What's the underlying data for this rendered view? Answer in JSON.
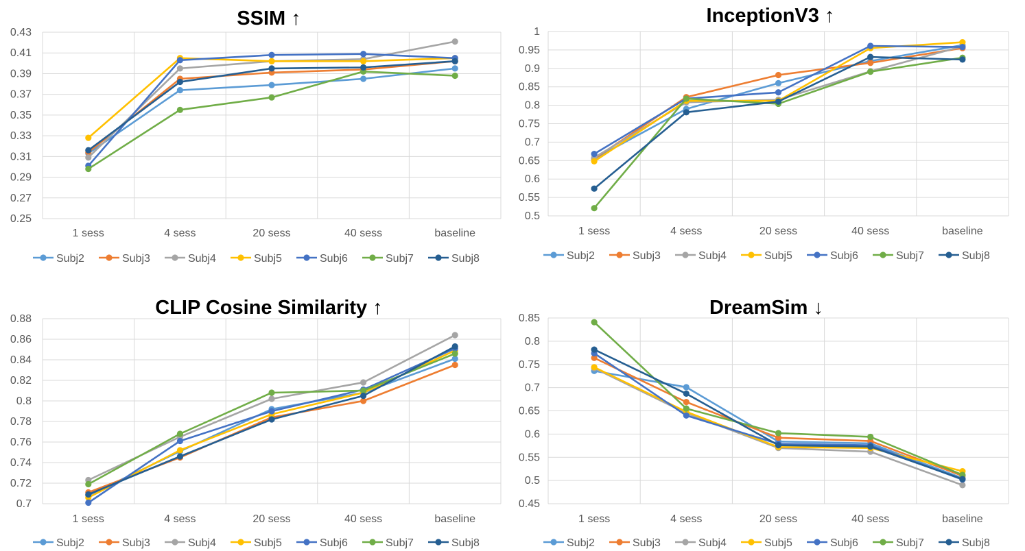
{
  "colors": {
    "Subj2": "#5B9BD5",
    "Subj3": "#ED7D31",
    "Subj4": "#A5A5A5",
    "Subj5": "#FFC000",
    "Subj6": "#4472C4",
    "Subj7": "#70AD47",
    "Subj8": "#255E91"
  },
  "chart_data": [
    {
      "type": "line",
      "title": "SSIM",
      "arrow": "↑",
      "categories": [
        "1 sess",
        "4 sess",
        "20 sess",
        "40 sess",
        "baseline"
      ],
      "ylim": [
        0.25,
        0.43
      ],
      "yticks": [
        0.25,
        0.27,
        0.29,
        0.31,
        0.33,
        0.35,
        0.37,
        0.39,
        0.41,
        0.43
      ],
      "ytick_labels": [
        "0.25",
        "0.27",
        "0.29",
        "0.31",
        "0.33",
        "0.35",
        "0.37",
        "0.39",
        "0.41",
        "0.43"
      ],
      "legend_position": "bottom",
      "series": [
        {
          "name": "Subj2",
          "values": [
            0.313,
            0.374,
            0.379,
            0.385,
            0.395
          ]
        },
        {
          "name": "Subj3",
          "values": [
            0.314,
            0.385,
            0.391,
            0.394,
            0.402
          ]
        },
        {
          "name": "Subj4",
          "values": [
            0.309,
            0.395,
            0.402,
            0.404,
            0.421
          ]
        },
        {
          "name": "Subj5",
          "values": [
            0.328,
            0.405,
            0.402,
            0.402,
            0.405
          ]
        },
        {
          "name": "Subj6",
          "values": [
            0.301,
            0.403,
            0.408,
            0.409,
            0.405
          ]
        },
        {
          "name": "Subj7",
          "values": [
            0.298,
            0.355,
            0.367,
            0.392,
            0.388
          ]
        },
        {
          "name": "Subj8",
          "values": [
            0.316,
            0.382,
            0.395,
            0.396,
            0.402
          ]
        }
      ]
    },
    {
      "type": "line",
      "title": "InceptionV3",
      "arrow": "↑",
      "categories": [
        "1 sess",
        "4 sess",
        "20 sess",
        "40 sess",
        "baseline"
      ],
      "ylim": [
        0.5,
        1.0
      ],
      "yticks": [
        0.5,
        0.55,
        0.6,
        0.65,
        0.7,
        0.75,
        0.8,
        0.85,
        0.9,
        0.95,
        1.0
      ],
      "ytick_labels": [
        "0.5",
        "0.55",
        "0.6",
        "0.65",
        "0.7",
        "0.75",
        "0.8",
        "0.85",
        "0.9",
        "0.95",
        "1"
      ],
      "legend_position": "bottom",
      "series": [
        {
          "name": "Subj2",
          "values": [
            0.655,
            0.79,
            0.86,
            0.92,
            0.963
          ]
        },
        {
          "name": "Subj3",
          "values": [
            0.655,
            0.822,
            0.882,
            0.915,
            0.955
          ]
        },
        {
          "name": "Subj4",
          "values": [
            0.658,
            0.808,
            0.815,
            0.892,
            0.96
          ]
        },
        {
          "name": "Subj5",
          "values": [
            0.648,
            0.812,
            0.812,
            0.955,
            0.971
          ]
        },
        {
          "name": "Subj6",
          "values": [
            0.668,
            0.818,
            0.835,
            0.961,
            0.958
          ]
        },
        {
          "name": "Subj7",
          "values": [
            0.521,
            0.818,
            0.804,
            0.891,
            0.929
          ]
        },
        {
          "name": "Subj8",
          "values": [
            0.574,
            0.781,
            0.81,
            0.931,
            0.924
          ]
        }
      ]
    },
    {
      "type": "line",
      "title": "CLIP Cosine Similarity",
      "arrow": "↑",
      "categories": [
        "1 sess",
        "4 sess",
        "20 sess",
        "40 sess",
        "baseline"
      ],
      "ylim": [
        0.7,
        0.88
      ],
      "yticks": [
        0.7,
        0.72,
        0.74,
        0.76,
        0.78,
        0.8,
        0.82,
        0.84,
        0.86,
        0.88
      ],
      "ytick_labels": [
        "0.7",
        "0.72",
        "0.74",
        "0.76",
        "0.78",
        "0.8",
        "0.82",
        "0.84",
        "0.86",
        "0.88"
      ],
      "legend_position": "bottom",
      "series": [
        {
          "name": "Subj2",
          "values": [
            0.708,
            0.751,
            0.792,
            0.808,
            0.841
          ]
        },
        {
          "name": "Subj3",
          "values": [
            0.711,
            0.745,
            0.784,
            0.8,
            0.835
          ]
        },
        {
          "name": "Subj4",
          "values": [
            0.723,
            0.765,
            0.802,
            0.818,
            0.864
          ]
        },
        {
          "name": "Subj5",
          "values": [
            0.706,
            0.752,
            0.787,
            0.808,
            0.849
          ]
        },
        {
          "name": "Subj6",
          "values": [
            0.701,
            0.761,
            0.79,
            0.811,
            0.851
          ]
        },
        {
          "name": "Subj7",
          "values": [
            0.719,
            0.768,
            0.808,
            0.81,
            0.846
          ]
        },
        {
          "name": "Subj8",
          "values": [
            0.709,
            0.746,
            0.782,
            0.805,
            0.853
          ]
        }
      ]
    },
    {
      "type": "line",
      "title": "DreamSim",
      "arrow": "↓",
      "categories": [
        "1 sess",
        "4 sess",
        "20 sess",
        "40 sess",
        "baseline"
      ],
      "ylim": [
        0.45,
        0.85
      ],
      "yticks": [
        0.45,
        0.5,
        0.55,
        0.6,
        0.65,
        0.7,
        0.75,
        0.8,
        0.85
      ],
      "ytick_labels": [
        "0.45",
        "0.5",
        "0.55",
        "0.6",
        "0.65",
        "0.7",
        "0.75",
        "0.8",
        "0.85"
      ],
      "legend_position": "bottom",
      "series": [
        {
          "name": "Subj2",
          "values": [
            0.736,
            0.701,
            0.584,
            0.58,
            0.505
          ]
        },
        {
          "name": "Subj3",
          "values": [
            0.764,
            0.669,
            0.592,
            0.585,
            0.51
          ]
        },
        {
          "name": "Subj4",
          "values": [
            0.742,
            0.645,
            0.57,
            0.562,
            0.49
          ]
        },
        {
          "name": "Subj5",
          "values": [
            0.744,
            0.648,
            0.572,
            0.57,
            0.52
          ]
        },
        {
          "name": "Subj6",
          "values": [
            0.774,
            0.64,
            0.579,
            0.576,
            0.502
          ]
        },
        {
          "name": "Subj7",
          "values": [
            0.841,
            0.655,
            0.602,
            0.594,
            0.512
          ]
        },
        {
          "name": "Subj8",
          "values": [
            0.782,
            0.687,
            0.576,
            0.573,
            0.503
          ]
        }
      ]
    }
  ]
}
